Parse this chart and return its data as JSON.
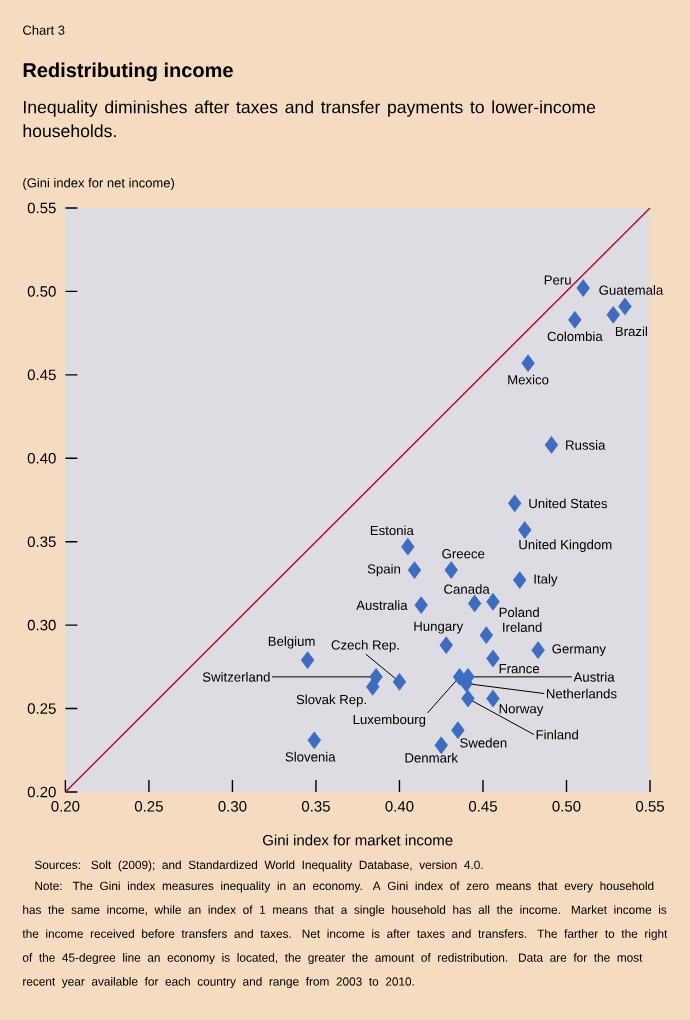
{
  "chart_data": {
    "type": "scatter",
    "title": "Redistributing income",
    "subtitle": "Inequality diminishes after taxes and transfer payments to lower-income households.",
    "ylabel": "(Gini index for net income)",
    "xlabel": "Gini index for market income",
    "xlim": [
      0.2,
      0.55
    ],
    "ylim": [
      0.2,
      0.55
    ],
    "xticks": [
      {
        "value": 0.2,
        "label": "0.20"
      },
      {
        "value": 0.25,
        "label": "0.25"
      },
      {
        "value": 0.3,
        "label": "0.30"
      },
      {
        "value": 0.35,
        "label": "0.35"
      },
      {
        "value": 0.4,
        "label": "0.40"
      },
      {
        "value": 0.45,
        "label": "0.45"
      },
      {
        "value": 0.5,
        "label": "0.50"
      },
      {
        "value": 0.55,
        "label": "0.55"
      }
    ],
    "yticks": [
      {
        "value": 0.2,
        "label": "0.20"
      },
      {
        "value": 0.25,
        "label": "0.25"
      },
      {
        "value": 0.3,
        "label": "0.30"
      },
      {
        "value": 0.35,
        "label": "0.35"
      },
      {
        "value": 0.4,
        "label": "0.40"
      },
      {
        "value": 0.45,
        "label": "0.45"
      },
      {
        "value": 0.5,
        "label": "0.50"
      },
      {
        "value": 0.55,
        "label": "0.55"
      }
    ],
    "series": [
      {
        "marker": "diamond",
        "color": "#3d6cc0",
        "x": [
          0.51,
          0.535,
          0.528,
          0.505,
          0.477,
          0.491,
          0.469,
          0.475,
          0.405,
          0.409,
          0.431,
          0.472,
          0.413,
          0.445,
          0.456,
          0.428,
          0.452,
          0.483,
          0.345,
          0.456,
          0.4,
          0.386,
          0.384,
          0.436,
          0.441,
          0.44,
          0.456,
          0.441,
          0.435,
          0.425,
          0.349
        ],
        "values": [
          0.502,
          0.491,
          0.486,
          0.483,
          0.457,
          0.408,
          0.373,
          0.357,
          0.347,
          0.333,
          0.333,
          0.327,
          0.312,
          0.313,
          0.314,
          0.288,
          0.294,
          0.285,
          0.279,
          0.28,
          0.266,
          0.269,
          0.263,
          0.269,
          0.269,
          0.265,
          0.256,
          0.256,
          0.237,
          0.228,
          0.231
        ]
      },
      {
        "type": "line",
        "color": "#c0002a",
        "x": [
          0.2,
          0.55
        ],
        "values": [
          0.2,
          0.55
        ]
      }
    ],
    "annotations": [
      "Chart 3",
      {
        "text": "Peru",
        "x": 0.51,
        "y": 0.502
      },
      {
        "text": "Guatemala",
        "x": 0.535,
        "y": 0.491
      },
      {
        "text": "Brazil",
        "x": 0.528,
        "y": 0.486
      },
      {
        "text": "Colombia",
        "x": 0.505,
        "y": 0.483
      },
      {
        "text": "Mexico",
        "x": 0.477,
        "y": 0.457
      },
      {
        "text": "Russia",
        "x": 0.491,
        "y": 0.408
      },
      {
        "text": "United States",
        "x": 0.469,
        "y": 0.373
      },
      {
        "text": "United Kingdom",
        "x": 0.475,
        "y": 0.357
      },
      {
        "text": "Estonia",
        "x": 0.405,
        "y": 0.347
      },
      {
        "text": "Spain",
        "x": 0.409,
        "y": 0.333
      },
      {
        "text": "Greece",
        "x": 0.431,
        "y": 0.333
      },
      {
        "text": "Italy",
        "x": 0.472,
        "y": 0.327
      },
      {
        "text": "Australia",
        "x": 0.413,
        "y": 0.312
      },
      {
        "text": "Canada",
        "x": 0.445,
        "y": 0.313
      },
      {
        "text": "Poland",
        "x": 0.456,
        "y": 0.314
      },
      {
        "text": "Hungary",
        "x": 0.428,
        "y": 0.288
      },
      {
        "text": "Ireland",
        "x": 0.452,
        "y": 0.294
      },
      {
        "text": "Germany",
        "x": 0.483,
        "y": 0.285
      },
      {
        "text": "Belgium",
        "x": 0.345,
        "y": 0.279
      },
      {
        "text": "France",
        "x": 0.456,
        "y": 0.28
      },
      {
        "text": "Czech Rep.",
        "x": 0.4,
        "y": 0.266
      },
      {
        "text": "Switzerland",
        "x": 0.386,
        "y": 0.269
      },
      {
        "text": "Slovak Rep.",
        "x": 0.384,
        "y": 0.263
      },
      {
        "text": "Luxembourg",
        "x": 0.436,
        "y": 0.269
      },
      {
        "text": "Austria",
        "x": 0.441,
        "y": 0.269
      },
      {
        "text": "Netherlands",
        "x": 0.44,
        "y": 0.265
      },
      {
        "text": "Norway",
        "x": 0.456,
        "y": 0.256
      },
      {
        "text": "Finland",
        "x": 0.441,
        "y": 0.256
      },
      {
        "text": "Sweden",
        "x": 0.435,
        "y": 0.237
      },
      {
        "text": "Denmark",
        "x": 0.425,
        "y": 0.228
      },
      {
        "text": "Slovenia",
        "x": 0.349,
        "y": 0.231
      },
      "Sources: Solt (2009); and Standardized World Inequality Database, version 4.0.",
      "Note: The Gini index measures inequality in an economy. A Gini index of zero means that every household has the same income, while an index of 1 means that a single household has all the income. Market income is the income received before transfers and taxes. Net income is after taxes and transfers.  The farther to the right of the 45-degree line an economy is located, the greater the amount of redistribution. Data are for the most recent year available for each country and range from 2003 to 2010."
    ]
  }
}
